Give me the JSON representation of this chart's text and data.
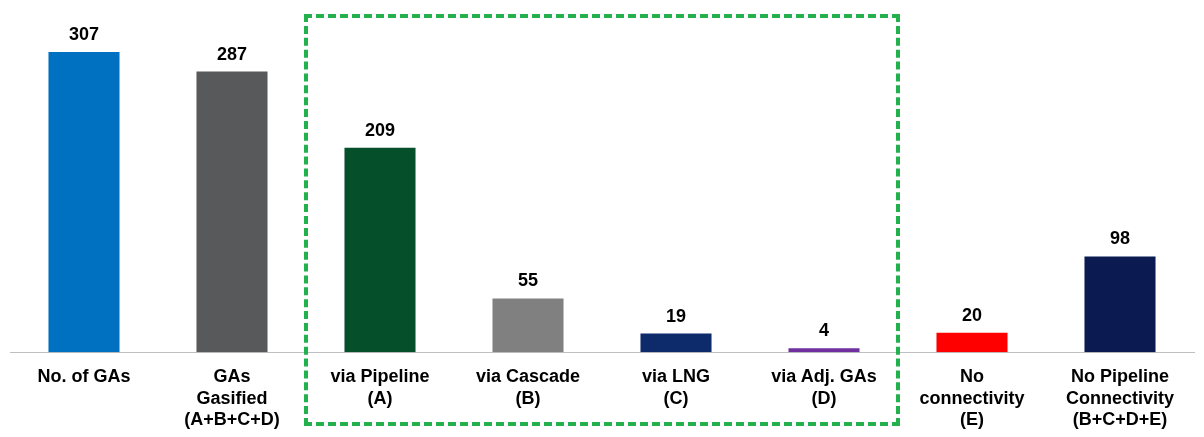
{
  "chart_data": {
    "type": "bar",
    "categories": [
      "No. of GAs",
      "GAs\nGasified\n(A+B+C+D)",
      "via Pipeline\n(A)",
      "via Cascade\n(B)",
      "via LNG\n(C)",
      "via Adj. GAs\n(D)",
      "No\nconnectivity\n(E)",
      "No Pipeline\nConnectivity\n(B+C+D+E)"
    ],
    "values": [
      307,
      287,
      209,
      55,
      19,
      4,
      20,
      98
    ],
    "colors": [
      "#0070c0",
      "#58595b",
      "#05502a",
      "#808080",
      "#0d2a6b",
      "#7030a0",
      "#ff0000",
      "#0c1a52"
    ],
    "data_labels": true,
    "grid": false,
    "legend": false
  }
}
